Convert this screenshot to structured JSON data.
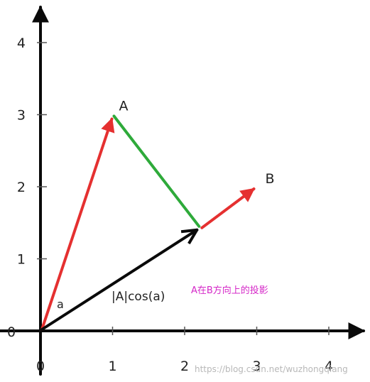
{
  "x_ticks": [
    "0",
    "1",
    "2",
    "3",
    "4"
  ],
  "y_ticks": [
    "1",
    "2",
    "3",
    "4"
  ],
  "origin_label": "0",
  "vector_a_label": "A",
  "vector_b_label": "B",
  "angle_label": "a",
  "projection_label": "|A|cos(a)",
  "annotation": "A在B方向上的投影",
  "watermark": "https://blog.csdn.net/wuzhongqiang",
  "colors": {
    "axis": "#0a0a0a",
    "vector_a": "#e53030",
    "vector_b": "#e53030",
    "projection": "#0a0a0a",
    "perpendicular": "#2eaa3a",
    "annotation": "#d528c8"
  },
  "vectors": {
    "A": [
      1,
      3
    ],
    "B": [
      3,
      2
    ],
    "projection_tip": [
      2.2,
      1.45
    ]
  }
}
